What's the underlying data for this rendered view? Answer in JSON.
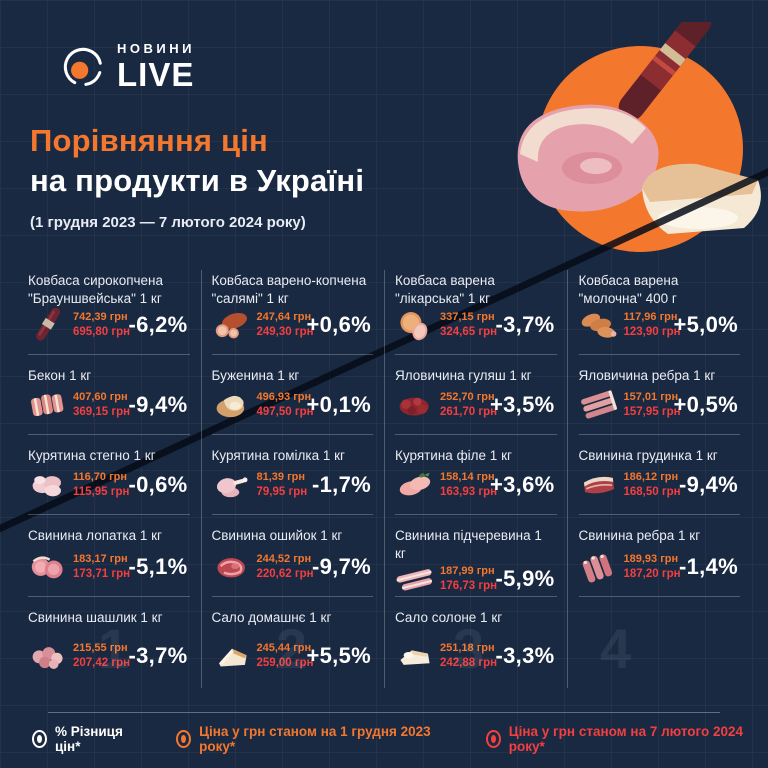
{
  "logo": {
    "brand_top": "НОВИНИ",
    "brand_main": "LIVE"
  },
  "header": {
    "title_accent": "Порівняння цін",
    "title_rest": "на продукти в Україні",
    "subtitle": "(1 грудня 2023 — 7 лютого 2024 року)"
  },
  "colors": {
    "background": "#1A2942",
    "accent_orange": "#F4772E",
    "price_new_red": "#F33F3F",
    "text_white": "#FFFFFF"
  },
  "watermark_numbers": [
    "1",
    "2",
    "3",
    "4"
  ],
  "products": [
    {
      "name": "Ковбаса сирокопчена \"Брауншвейська\" 1 кг",
      "price_dec_2023": "742,39 грн",
      "price_feb_2024": "695,80 грн",
      "change": "-6,2%",
      "icon": "smoked-sausage-icon"
    },
    {
      "name": "Ковбаса варено-копчена \"салямі\" 1 кг",
      "price_dec_2023": "247,64 грн",
      "price_feb_2024": "249,30 грн",
      "change": "+0,6%",
      "icon": "salami-icon"
    },
    {
      "name": "Ковбаса варена \"лікарська\" 1 кг",
      "price_dec_2023": "337,15 грн",
      "price_feb_2024": "324,65 грн",
      "change": "-3,7%",
      "icon": "bologna-icon"
    },
    {
      "name": "Ковбаса варена \"молочна\" 400 г",
      "price_dec_2023": "117,96 грн",
      "price_feb_2024": "123,90 грн",
      "change": "+5,0%",
      "icon": "milk-sausage-icon"
    },
    {
      "name": "Бекон 1 кг",
      "price_dec_2023": "407,60 грн",
      "price_feb_2024": "369,15 грн",
      "change": "-9,4%",
      "icon": "bacon-icon"
    },
    {
      "name": "Буженина 1 кг",
      "price_dec_2023": "496,93 грн",
      "price_feb_2024": "497,50 грн",
      "change": "+0,1%",
      "icon": "baked-pork-icon"
    },
    {
      "name": "Яловичина гуляш 1 кг",
      "price_dec_2023": "252,70 грн",
      "price_feb_2024": "261,70 грн",
      "change": "+3,5%",
      "icon": "beef-goulash-icon"
    },
    {
      "name": "Яловичина ребра 1 кг",
      "price_dec_2023": "157,01 грн",
      "price_feb_2024": "157,95 грн",
      "change": "+0,5%",
      "icon": "beef-ribs-icon"
    },
    {
      "name": "Курятина стегно 1 кг",
      "price_dec_2023": "116,70 грн",
      "price_feb_2024": "115,95 грн",
      "change": "-0,6%",
      "icon": "chicken-thigh-icon"
    },
    {
      "name": "Курятина гомілка 1 кг",
      "price_dec_2023": "81,39 грн",
      "price_feb_2024": "79,95 грн",
      "change": "-1,7%",
      "icon": "chicken-drumstick-icon"
    },
    {
      "name": "Курятина філе 1 кг",
      "price_dec_2023": "158,14 грн",
      "price_feb_2024": "163,93 грн",
      "change": "+3,6%",
      "icon": "chicken-fillet-icon"
    },
    {
      "name": "Свинина грудинка 1 кг",
      "price_dec_2023": "186,12 грн",
      "price_feb_2024": "168,50 грн",
      "change": "-9,4%",
      "icon": "pork-brisket-icon"
    },
    {
      "name": "Свинина лопатка 1 кг",
      "price_dec_2023": "183,17 грн",
      "price_feb_2024": "173,71 грн",
      "change": "-5,1%",
      "icon": "pork-shoulder-icon"
    },
    {
      "name": "Свинина ошийок 1 кг",
      "price_dec_2023": "244,52 грн",
      "price_feb_2024": "220,62 грн",
      "change": "-9,7%",
      "icon": "pork-neck-icon"
    },
    {
      "name": "Свинина підчеревина 1 кг",
      "price_dec_2023": "187,99 грн",
      "price_feb_2024": "176,73 грн",
      "change": "-5,9%",
      "icon": "pork-belly-icon"
    },
    {
      "name": "Свинина ребра 1 кг",
      "price_dec_2023": "189,93 грн",
      "price_feb_2024": "187,20 грн",
      "change": "-1,4%",
      "icon": "pork-ribs-icon"
    },
    {
      "name": "Свинина шашлик 1 кг",
      "price_dec_2023": "215,55 грн",
      "price_feb_2024": "207,42 грн",
      "change": "-3,7%",
      "icon": "pork-skewer-icon"
    },
    {
      "name": "Сало домашнє 1 кг",
      "price_dec_2023": "245,44 грн",
      "price_feb_2024": "259,00 грн",
      "change": "+5,5%",
      "icon": "salo-home-icon"
    },
    {
      "name": "Сало солоне 1 кг",
      "price_dec_2023": "251,18 грн",
      "price_feb_2024": "242,88 грн",
      "change": "-3,3%",
      "icon": "salo-salted-icon"
    }
  ],
  "legend": [
    {
      "label": "% Різниця цін*",
      "color": "#FFFFFF"
    },
    {
      "label": "Ціна у грн станом на 1 грудня 2023 року*",
      "color": "#F4772E"
    },
    {
      "label": "Ціна у грн станом на 7 лютого 2024 року*",
      "color": "#F33F3F"
    }
  ],
  "chart_data": {
    "type": "table",
    "title": "Порівняння цін на продукти в Україні (1 грудня 2023 — 7 лютого 2024 року)",
    "categories": [
      "Ковбаса сирокопчена \"Брауншвейська\" 1 кг",
      "Ковбаса варено-копчена \"салямі\" 1 кг",
      "Ковбаса варена \"лікарська\" 1 кг",
      "Ковбаса варена \"молочна\" 400 г",
      "Бекон 1 кг",
      "Буженина 1 кг",
      "Яловичина гуляш 1 кг",
      "Яловичина ребра 1 кг",
      "Курятина стегно 1 кг",
      "Курятина гомілка 1 кг",
      "Курятина філе 1 кг",
      "Свинина грудинка 1 кг",
      "Свинина лопатка 1 кг",
      "Свинина ошийок 1 кг",
      "Свинина підчеревина 1 кг",
      "Свинина ребра 1 кг",
      "Свинина шашлик 1 кг",
      "Сало домашнє 1 кг",
      "Сало солоне 1 кг"
    ],
    "series": [
      {
        "name": "Ціна у грн станом на 1 грудня 2023 року",
        "values": [
          742.39,
          247.64,
          337.15,
          117.96,
          407.6,
          496.93,
          252.7,
          157.01,
          116.7,
          81.39,
          158.14,
          186.12,
          183.17,
          244.52,
          187.99,
          189.93,
          215.55,
          245.44,
          251.18
        ]
      },
      {
        "name": "Ціна у грн станом на 7 лютого 2024 року",
        "values": [
          695.8,
          249.3,
          324.65,
          123.9,
          369.15,
          497.5,
          261.7,
          157.95,
          115.95,
          79.95,
          163.93,
          168.5,
          173.71,
          220.62,
          176.73,
          187.2,
          207.42,
          259.0,
          242.88
        ]
      },
      {
        "name": "% Різниця цін",
        "values": [
          -6.2,
          0.6,
          -3.7,
          5.0,
          -9.4,
          0.1,
          3.5,
          0.5,
          -0.6,
          -1.7,
          3.6,
          -9.4,
          -5.1,
          -9.7,
          -5.9,
          -1.4,
          -3.7,
          5.5,
          -3.3
        ]
      }
    ],
    "legend_position": "bottom"
  }
}
